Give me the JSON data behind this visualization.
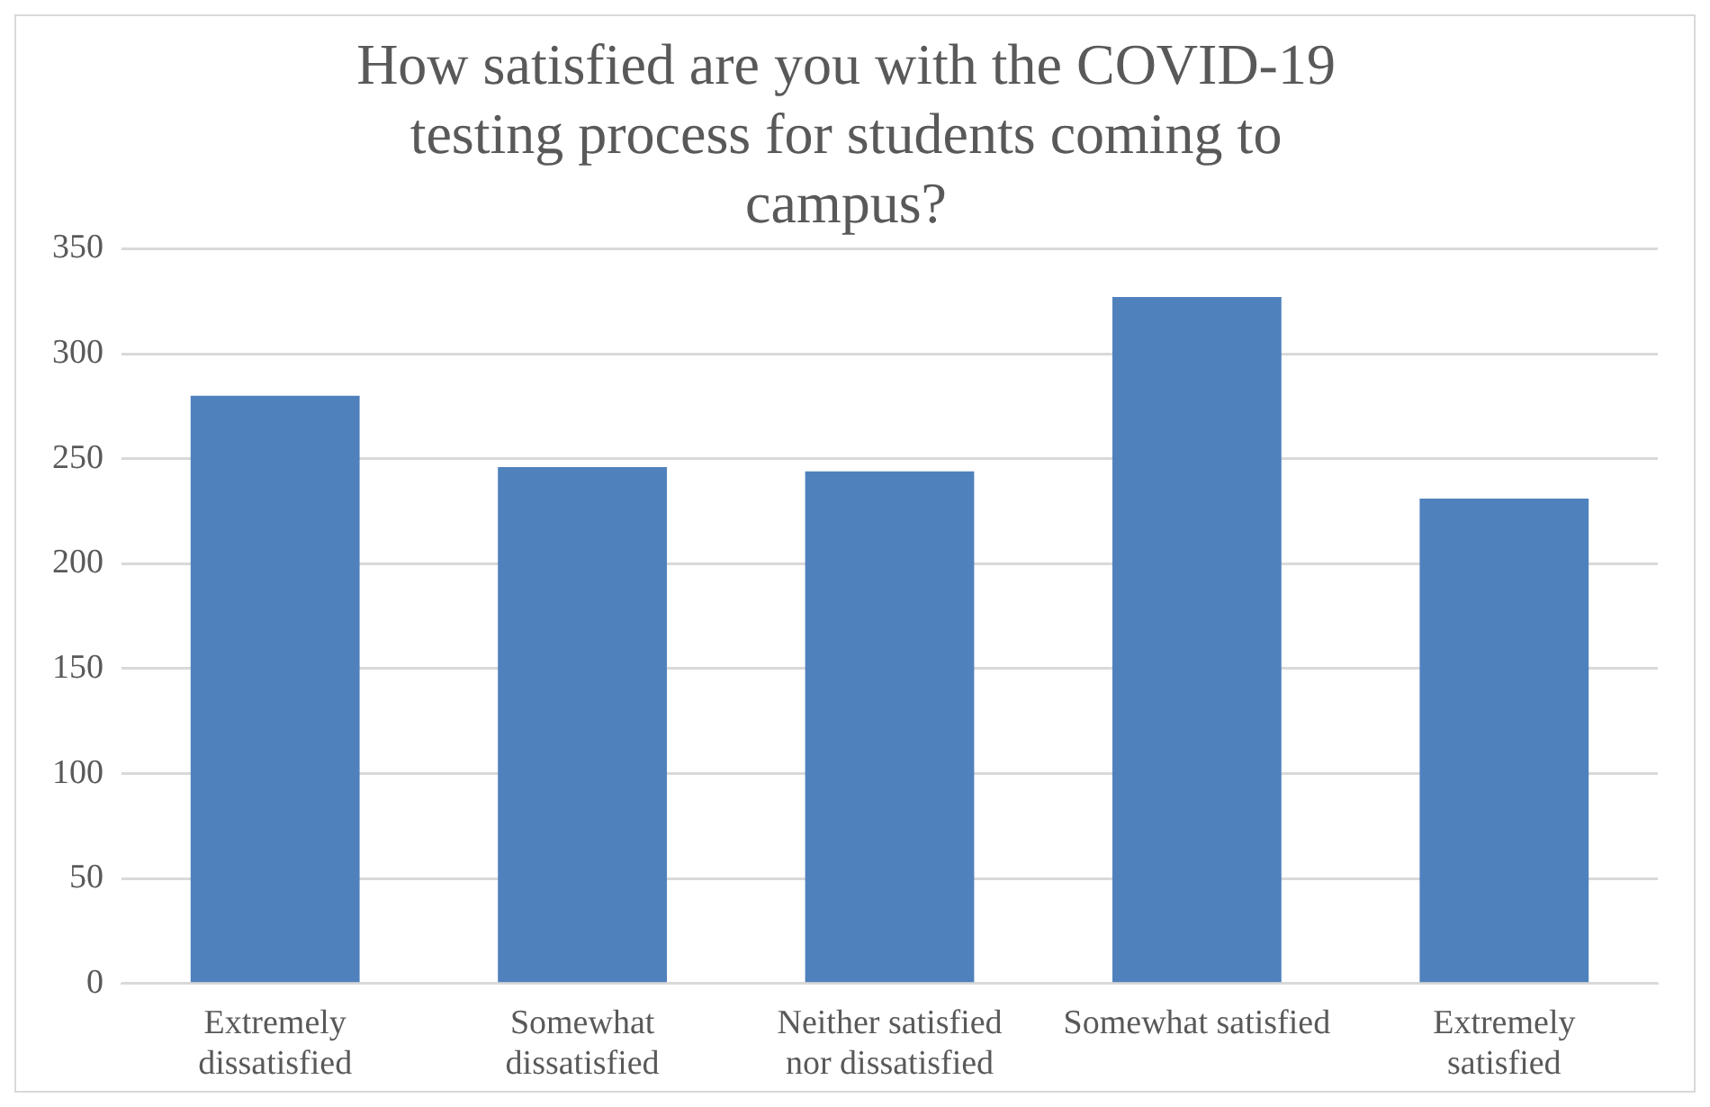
{
  "chart_data": {
    "type": "bar",
    "title": "How satisfied are you with the COVID-19 testing process for students coming to campus?",
    "categories": [
      "Extremely dissatisfied",
      "Somewhat dissatisfied",
      "Neither satisfied nor dissatisfied",
      "Somewhat satisfied",
      "Extremely satisfied"
    ],
    "values": [
      280,
      246,
      244,
      327,
      231
    ],
    "color": "#4f81bd",
    "ylim": [
      0,
      350
    ],
    "yticks": [
      0,
      50,
      100,
      150,
      200,
      250,
      300,
      350
    ],
    "grid": "y",
    "legend": false
  }
}
